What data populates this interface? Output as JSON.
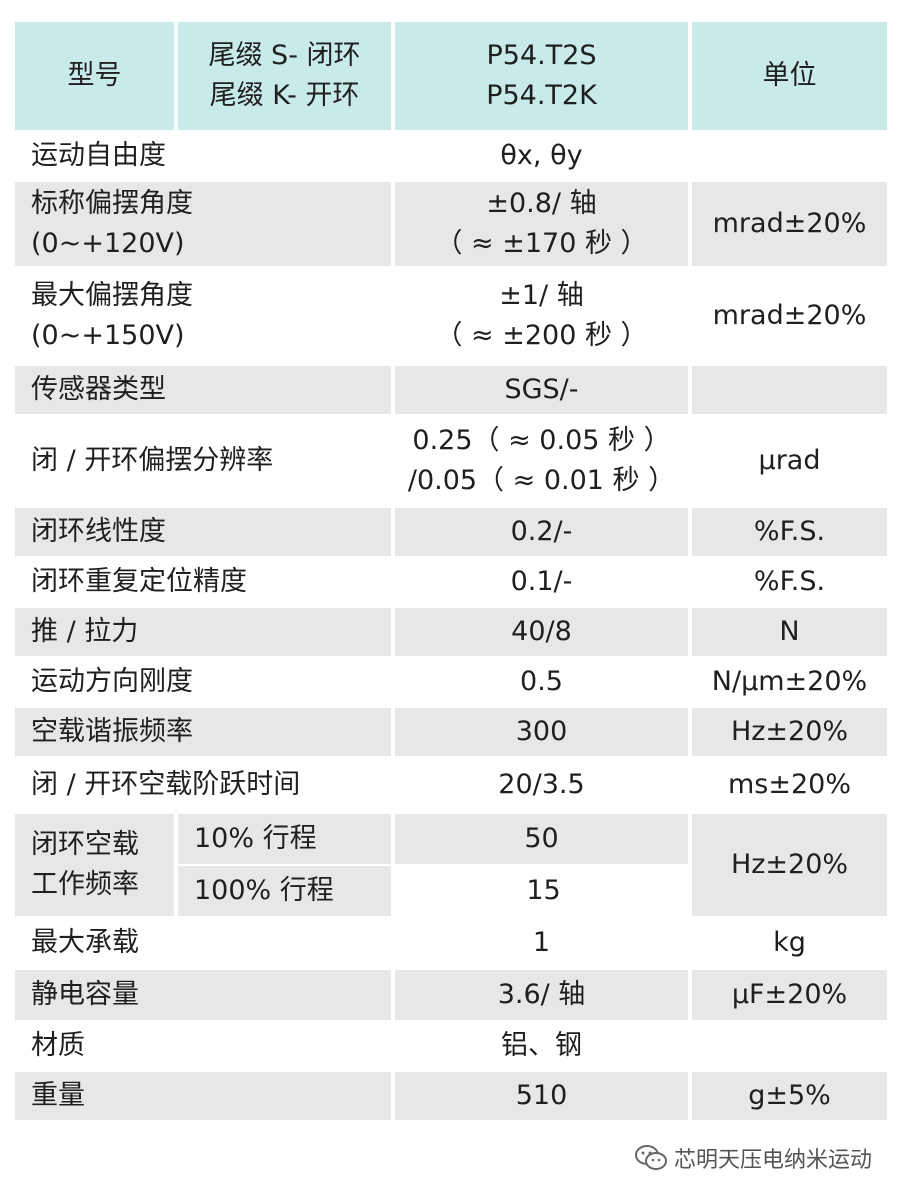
{
  "header": {
    "model_label": "型号",
    "suffix_lines": [
      "尾缀 S- 闭环",
      "尾缀 K- 开环"
    ],
    "model_lines": [
      "P54.T2S",
      "P54.T2K"
    ],
    "unit_label": "单位"
  },
  "rows": [
    {
      "name": [
        "运动自由度"
      ],
      "value": [
        "θx, θy"
      ],
      "unit": ""
    },
    {
      "name": [
        "标称偏摆角度",
        "(0~+120V)"
      ],
      "value": [
        "±0.8/ 轴",
        "（ ≈ ±170 秒 ）"
      ],
      "unit": "mrad±20%"
    },
    {
      "name": [
        "最大偏摆角度",
        "(0~+150V)"
      ],
      "value": [
        "±1/ 轴",
        "（ ≈ ±200 秒 ）"
      ],
      "unit": "mrad±20%"
    },
    {
      "name": [
        "传感器类型"
      ],
      "value": [
        "SGS/-"
      ],
      "unit": ""
    },
    {
      "name": [
        "闭 / 开环偏摆分辨率"
      ],
      "value": [
        "0.25（ ≈ 0.05 秒 ）",
        "/0.05（ ≈ 0.01 秒 ）"
      ],
      "unit": "μrad"
    },
    {
      "name": [
        "闭环线性度"
      ],
      "value": [
        "0.2/-"
      ],
      "unit": "%F.S."
    },
    {
      "name": [
        "闭环重复定位精度"
      ],
      "value": [
        "0.1/-"
      ],
      "unit": "%F.S."
    },
    {
      "name": [
        "推 / 拉力"
      ],
      "value": [
        "40/8"
      ],
      "unit": "N"
    },
    {
      "name": [
        "运动方向刚度"
      ],
      "value": [
        "0.5"
      ],
      "unit": "N/μm±20%"
    },
    {
      "name": [
        "空载谐振频率"
      ],
      "value": [
        "300"
      ],
      "unit": "Hz±20%"
    },
    {
      "name": [
        "闭 / 开环空载阶跃时间"
      ],
      "value": [
        "20/3.5"
      ],
      "unit": "ms±20%"
    }
  ],
  "freq_group": {
    "name": [
      "闭环空载",
      "工作频率"
    ],
    "sub1": "10% 行程",
    "val1": "50",
    "sub2": "100% 行程",
    "val2": "15",
    "unit": "Hz±20%"
  },
  "tail_rows": [
    {
      "name": [
        "最大承载"
      ],
      "value": [
        "1"
      ],
      "unit": "kg"
    },
    {
      "name": [
        "静电容量"
      ],
      "value": [
        "3.6/ 轴"
      ],
      "unit": "μF±20%"
    },
    {
      "name": [
        "材质"
      ],
      "value": [
        "铝、钢"
      ],
      "unit": ""
    },
    {
      "name": [
        "重量"
      ],
      "value": [
        "510"
      ],
      "unit": "g±5%"
    }
  ],
  "watermark": {
    "text": "芯明天压电纳米运动",
    "icon": "wechat-icon"
  },
  "colors": {
    "header_bg": "#c8ebea",
    "stripe_bg": "#e7e7e7"
  }
}
